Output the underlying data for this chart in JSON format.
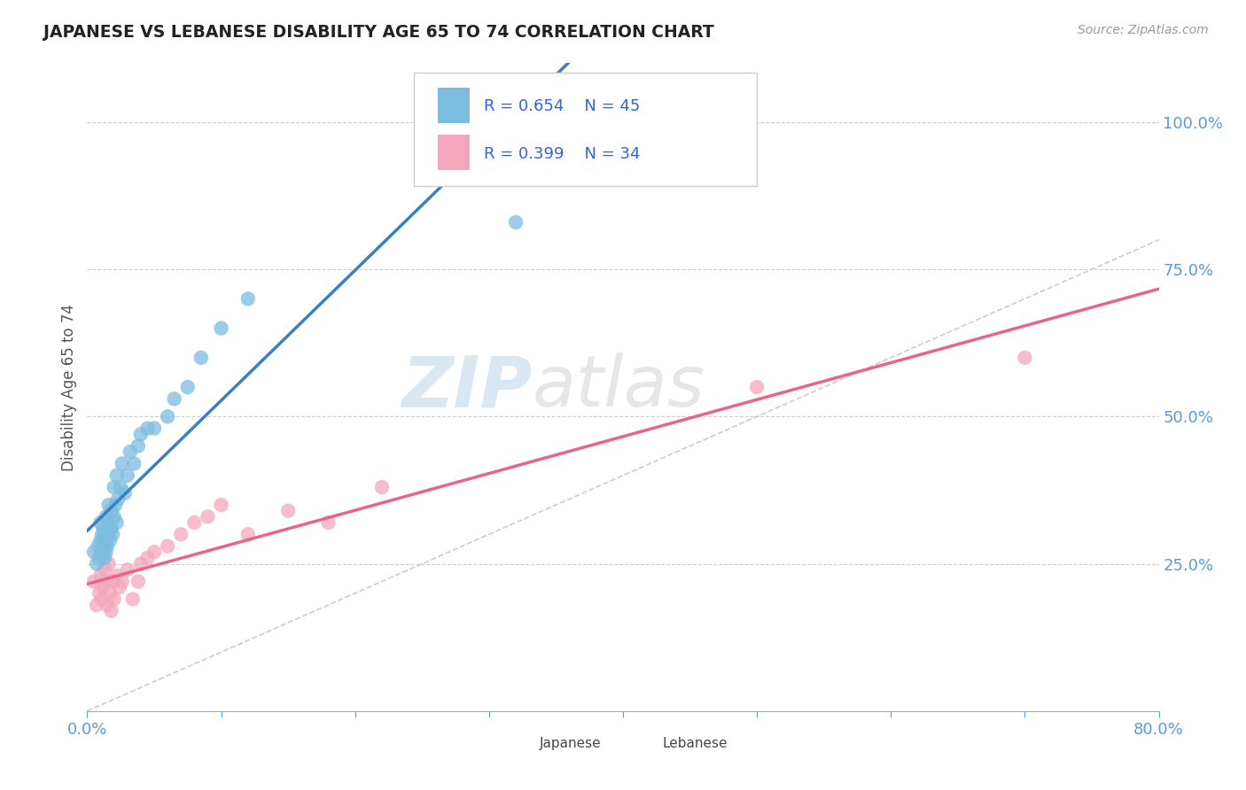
{
  "title": "JAPANESE VS LEBANESE DISABILITY AGE 65 TO 74 CORRELATION CHART",
  "source": "Source: ZipAtlas.com",
  "ylabel": "Disability Age 65 to 74",
  "xmin": 0.0,
  "xmax": 0.8,
  "ymin": 0.0,
  "ymax": 1.1,
  "y_ticks": [
    0.25,
    0.5,
    0.75,
    1.0
  ],
  "y_tick_labels": [
    "25.0%",
    "50.0%",
    "75.0%",
    "100.0%"
  ],
  "x_tick_labels": [
    "0.0%",
    "80.0%"
  ],
  "legend_r_japanese": "R = 0.654",
  "legend_n_japanese": "N = 45",
  "legend_r_lebanese": "R = 0.399",
  "legend_n_lebanese": "N = 34",
  "japanese_color": "#7bbcdf",
  "lebanese_color": "#f4a7bc",
  "japanese_line_color": "#3a7fc1",
  "lebanese_line_color": "#e8648a",
  "diagonal_color": "#c0c0c0",
  "background_color": "#ffffff",
  "watermark_zip": "ZIP",
  "watermark_atlas": "atlas",
  "japanese_x": [
    0.005,
    0.007,
    0.008,
    0.009,
    0.01,
    0.01,
    0.011,
    0.011,
    0.012,
    0.012,
    0.013,
    0.013,
    0.014,
    0.014,
    0.015,
    0.015,
    0.016,
    0.016,
    0.017,
    0.018,
    0.018,
    0.019,
    0.02,
    0.02,
    0.021,
    0.022,
    0.022,
    0.023,
    0.025,
    0.026,
    0.028,
    0.03,
    0.032,
    0.035,
    0.038,
    0.04,
    0.045,
    0.05,
    0.06,
    0.065,
    0.075,
    0.085,
    0.1,
    0.12,
    0.32
  ],
  "japanese_y": [
    0.27,
    0.25,
    0.28,
    0.26,
    0.29,
    0.32,
    0.27,
    0.3,
    0.28,
    0.31,
    0.26,
    0.29,
    0.27,
    0.33,
    0.28,
    0.32,
    0.3,
    0.35,
    0.29,
    0.31,
    0.34,
    0.3,
    0.33,
    0.38,
    0.35,
    0.32,
    0.4,
    0.36,
    0.38,
    0.42,
    0.37,
    0.4,
    0.44,
    0.42,
    0.45,
    0.47,
    0.48,
    0.48,
    0.5,
    0.53,
    0.55,
    0.6,
    0.65,
    0.7,
    0.83
  ],
  "lebanese_x": [
    0.005,
    0.007,
    0.009,
    0.01,
    0.011,
    0.012,
    0.013,
    0.014,
    0.015,
    0.016,
    0.017,
    0.018,
    0.019,
    0.02,
    0.022,
    0.024,
    0.026,
    0.03,
    0.034,
    0.038,
    0.04,
    0.045,
    0.05,
    0.06,
    0.07,
    0.08,
    0.09,
    0.1,
    0.12,
    0.15,
    0.18,
    0.22,
    0.5,
    0.7
  ],
  "lebanese_y": [
    0.22,
    0.18,
    0.2,
    0.23,
    0.19,
    0.21,
    0.24,
    0.22,
    0.18,
    0.25,
    0.2,
    0.17,
    0.22,
    0.19,
    0.23,
    0.21,
    0.22,
    0.24,
    0.19,
    0.22,
    0.25,
    0.26,
    0.27,
    0.28,
    0.3,
    0.32,
    0.33,
    0.35,
    0.3,
    0.34,
    0.32,
    0.38,
    0.55,
    0.6
  ]
}
